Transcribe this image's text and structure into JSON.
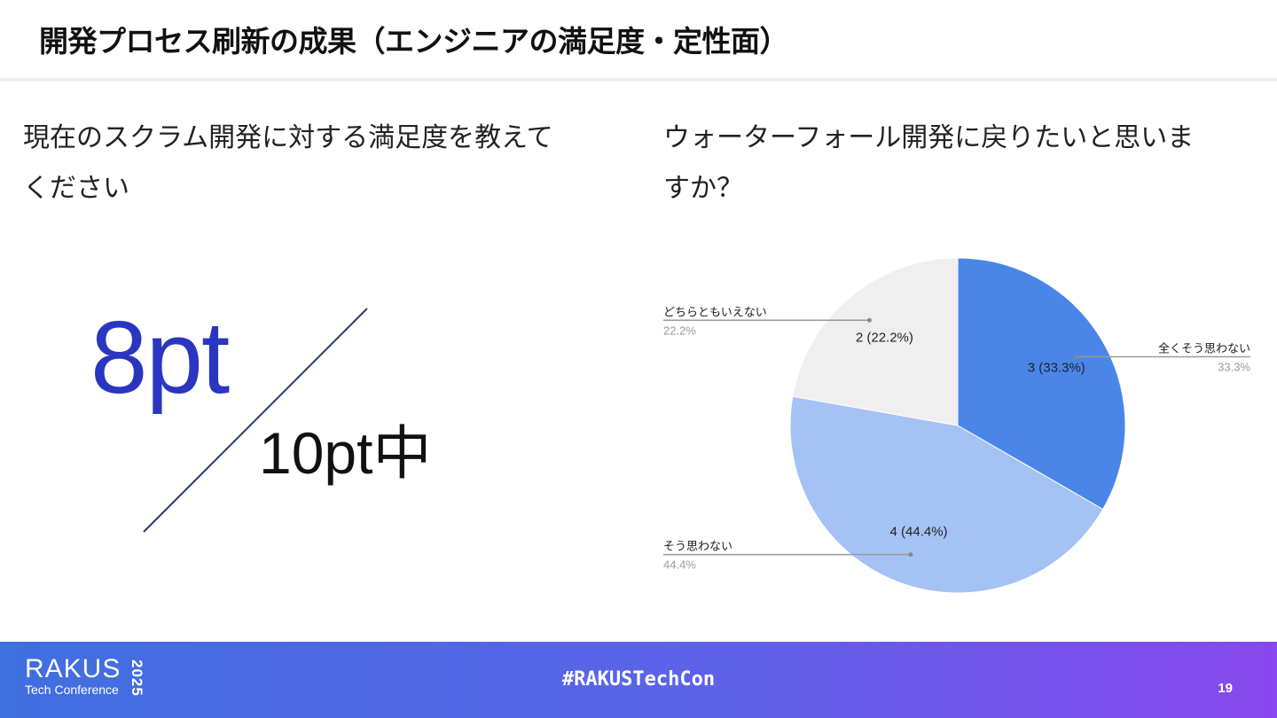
{
  "slide": {
    "title": "開発プロセス刷新の成果（エンジニアの満足度・定性面）",
    "page_number": "19"
  },
  "left_panel": {
    "question": "現在のスクラム開発に対する満足度を教えてください",
    "score": "8pt",
    "score_max": "10pt中",
    "accent_color": "#2a36c0"
  },
  "right_panel": {
    "question": "ウォーターフォール開発に戻りたいと思いますか？"
  },
  "chart_data": {
    "type": "pie",
    "start_angle_deg": 0,
    "direction": "clockwise",
    "slices": [
      {
        "label": "全くそう思わない",
        "count": 3,
        "percent": "33.3%",
        "inner_label": "3 (33.3%)",
        "color": "#4a86e8"
      },
      {
        "label": "そう思わない",
        "count": 4,
        "percent": "44.4%",
        "inner_label": "4 (44.4%)",
        "color": "#a4c2f4"
      },
      {
        "label": "どちらともいえない",
        "count": 2,
        "percent": "22.2%",
        "inner_label": "2 (22.2%)",
        "color": "#efefef"
      }
    ]
  },
  "footer": {
    "logo": "RAKUS",
    "logo_sub": "Tech Conference",
    "logo_year": "2025",
    "hashtag": "#RAKUSTechCon"
  }
}
